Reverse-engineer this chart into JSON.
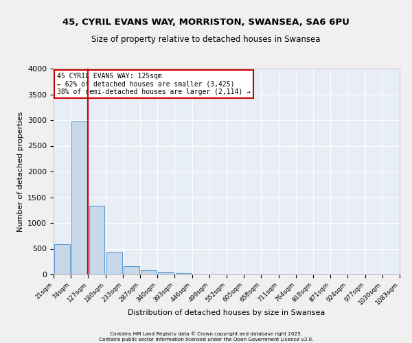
{
  "title1": "45, CYRIL EVANS WAY, MORRISTON, SWANSEA, SA6 6PU",
  "title2": "Size of property relative to detached houses in Swansea",
  "xlabel": "Distribution of detached houses by size in Swansea",
  "ylabel": "Number of detached properties",
  "bar_values": [
    590,
    2970,
    1340,
    430,
    160,
    75,
    40,
    30,
    0,
    0,
    0,
    0,
    0,
    0,
    0,
    0,
    0,
    0,
    0,
    0
  ],
  "bar_color": "#c8d8e8",
  "bar_edge_color": "#5b9bd5",
  "x_labels": [
    "21sqm",
    "74sqm",
    "127sqm",
    "180sqm",
    "233sqm",
    "287sqm",
    "340sqm",
    "393sqm",
    "446sqm",
    "499sqm",
    "552sqm",
    "605sqm",
    "658sqm",
    "711sqm",
    "764sqm",
    "818sqm",
    "871sqm",
    "924sqm",
    "977sqm",
    "1030sqm",
    "1083sqm"
  ],
  "annotation_title": "45 CYRIL EVANS WAY: 125sqm",
  "annotation_line2": "← 62% of detached houses are smaller (3,425)",
  "annotation_line3": "38% of semi-detached houses are larger (2,114) →",
  "annotation_color": "#cc0000",
  "property_line_x": 1.5,
  "ylim": [
    0,
    4000
  ],
  "yticks": [
    0,
    500,
    1000,
    1500,
    2000,
    2500,
    3000,
    3500,
    4000
  ],
  "bg_color": "#e8eef5",
  "grid_color": "#ffffff",
  "footer1": "Contains HM Land Registry data © Crown copyright and database right 2025.",
  "footer2": "Contains public sector information licensed under the Open Government Licence v3.0."
}
